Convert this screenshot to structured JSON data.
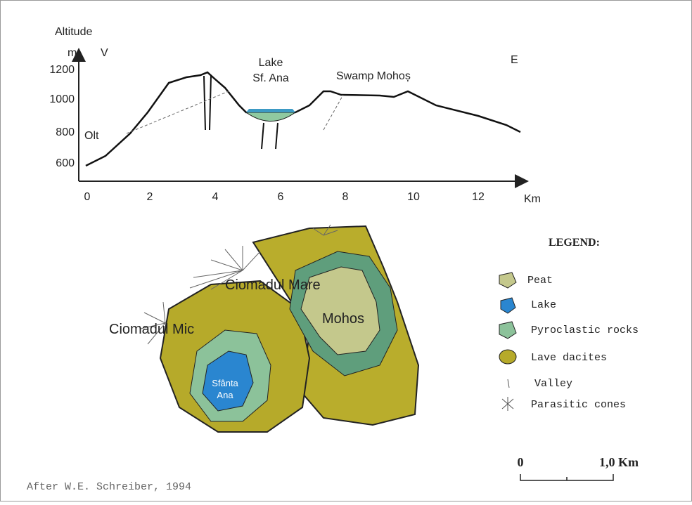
{
  "profile": {
    "y_axis_title": "Altitude",
    "y_unit": "m",
    "west": "V",
    "east": "E",
    "y_ticks": [
      "1200",
      "1000",
      "800",
      "600"
    ],
    "x_ticks": [
      "0",
      "2",
      "4",
      "6",
      "8",
      "10",
      "12"
    ],
    "x_unit": "Km",
    "labels": {
      "lake_line1": "Lake",
      "lake_line2": "Sf. Ana",
      "swamp": "Swamp Mohoș",
      "river": "Olt"
    }
  },
  "map": {
    "ciomadul_mic": "Ciomadul Mic",
    "ciomadul_mare": "Ciomadul Mare",
    "mohos": "Mohos",
    "lake_line1": "Sfânta",
    "lake_line2": "Ana"
  },
  "legend": {
    "title": "LEGEND:",
    "items": [
      "Peat",
      "Lake",
      "Pyroclastic rocks",
      "Lave dacites",
      "Valley",
      "Parasitic cones"
    ]
  },
  "scale": {
    "start": "0",
    "end": "1,0 Km"
  },
  "credit": "After W.E. Schreiber, 1994"
}
